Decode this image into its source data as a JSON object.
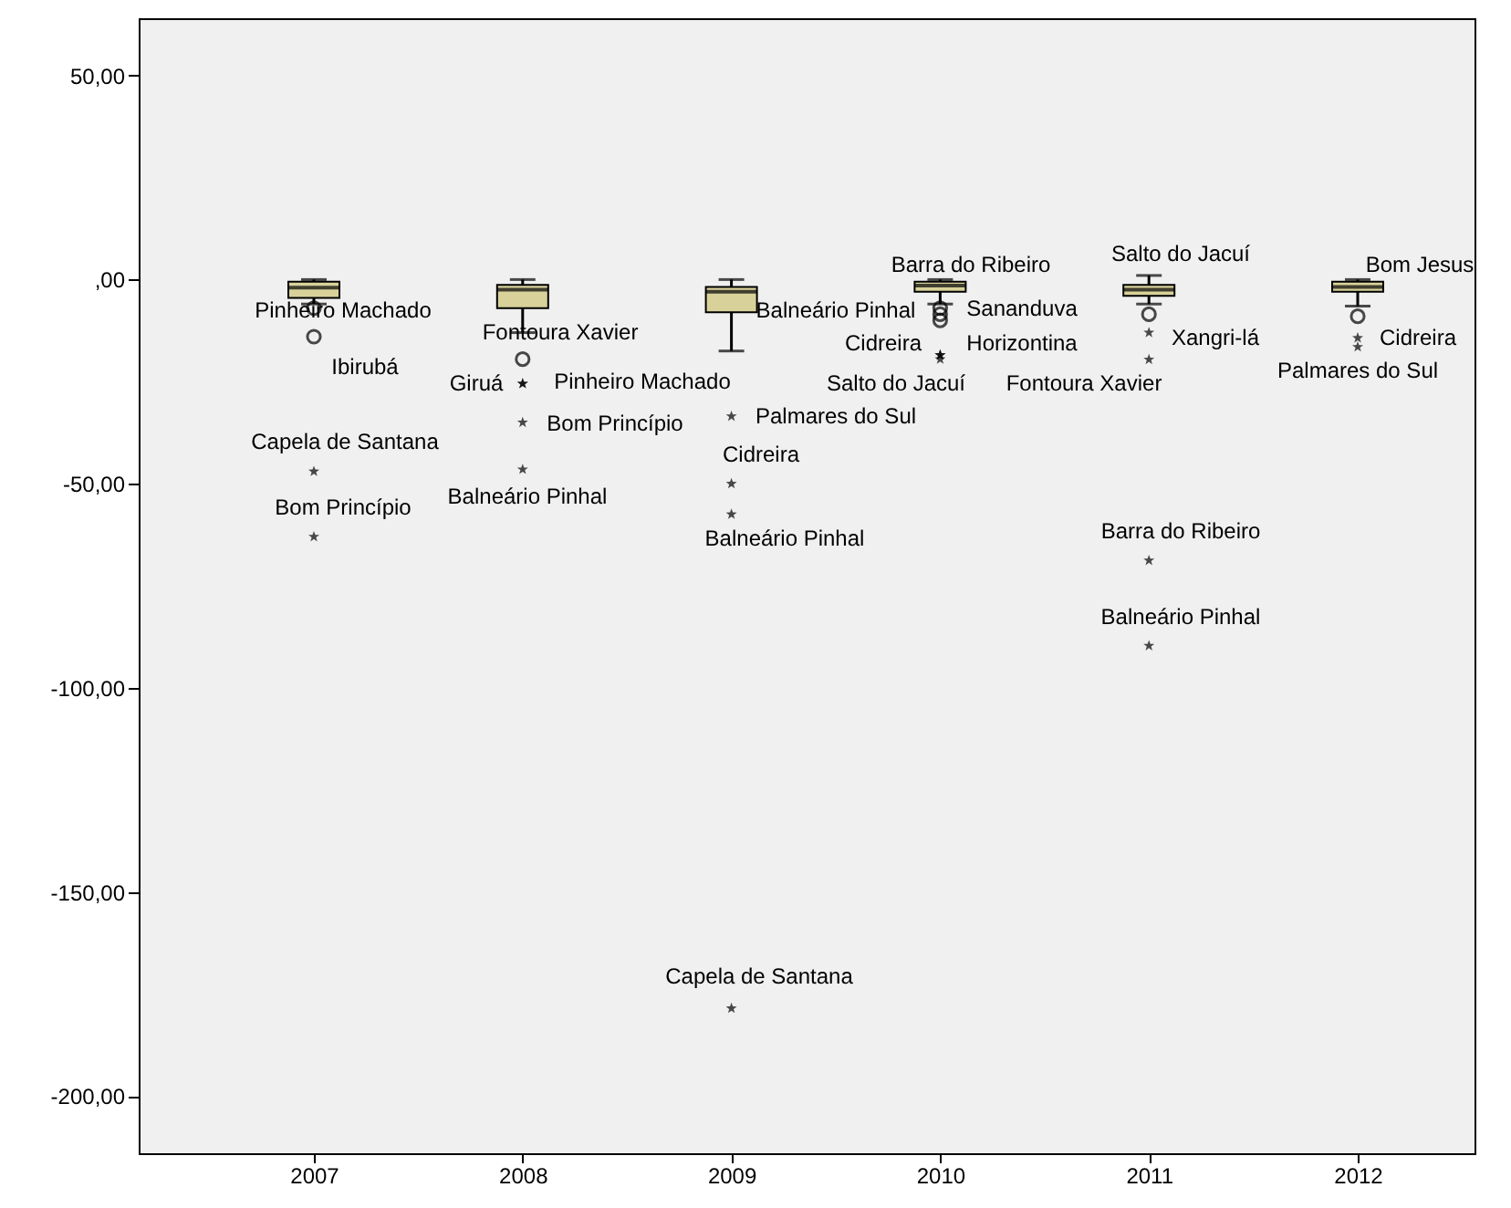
{
  "chart_data": {
    "type": "box",
    "categories": [
      "2007",
      "2008",
      "2009",
      "2010",
      "2011",
      "2012"
    ],
    "color": "#d8d29a",
    "boxes": [
      {
        "low": -6,
        "q1": -4.5,
        "median": -2,
        "q3": -0.5,
        "high": 0,
        "outliers": [
          -7,
          -14,
          -47,
          -63
        ]
      },
      {
        "low": -13,
        "q1": -7,
        "median": -2.5,
        "q3": -1.3,
        "high": 0,
        "outliers": [
          -19.5,
          -25.5,
          -25.5,
          -35,
          -46.5
        ]
      },
      {
        "low": -17.5,
        "q1": -8,
        "median": -3,
        "q3": -1.8,
        "high": 0,
        "outliers": [
          -33.5,
          -50,
          -57.5,
          -178.5
        ]
      },
      {
        "low": -6,
        "q1": -3,
        "median": -1.5,
        "q3": -0.5,
        "high": 0,
        "outliers": [
          -7,
          -8.5,
          -10,
          -18.5,
          -18.5,
          -19.5
        ]
      },
      {
        "low": -6,
        "q1": -4,
        "median": -2.5,
        "q3": -1.3,
        "high": 1,
        "outliers": [
          -8.5,
          -13,
          -19.6,
          -68.8,
          -89.7
        ]
      },
      {
        "low": -6.5,
        "q1": -3,
        "median": -1.8,
        "q3": -0.5,
        "high": 0,
        "outliers": [
          -9,
          -14.3,
          -16.5
        ]
      }
    ],
    "ylim": [
      -214,
      64
    ],
    "yticks": [
      {
        "value": 50,
        "label": "50,00"
      },
      {
        "value": 0,
        "label": ",00"
      },
      {
        "value": -50,
        "label": "-50,00"
      },
      {
        "value": -100,
        "label": "-100,00"
      },
      {
        "value": -150,
        "label": "-150,00"
      },
      {
        "value": -200,
        "label": "-200,00"
      }
    ],
    "grid": false,
    "annotations": [
      "Pinheiro Machado",
      "Ibirubá",
      "Capela de Santana",
      "Bom Princípio",
      "Fontoura Xavier",
      "Giruá",
      "Pinheiro Machado",
      "Bom Princípio",
      "Balneário Pinhal",
      "Palmares do Sul",
      "Cidreira",
      "Balneário Pinhal",
      "Capela de Santana",
      "Barra do Ribeiro",
      "Balneário Pinhal",
      "Sananduva",
      "Cidreira",
      "Horizontina",
      "Salto do Jacuí",
      "Salto do Jacuí",
      "Xangri-lá",
      "Fontoura Xavier",
      "Barra do Ribeiro",
      "Balneário Pinhal",
      "Bom Jesus",
      "Cidreira",
      "Palmares do Sul"
    ]
  }
}
